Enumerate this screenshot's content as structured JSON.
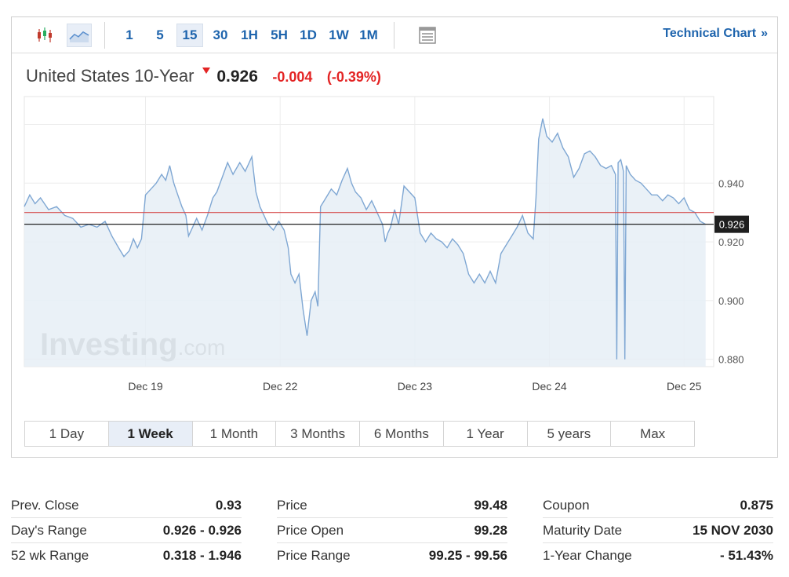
{
  "toolbar": {
    "intervals": [
      "1",
      "5",
      "15",
      "30",
      "1H",
      "5H",
      "1D",
      "1W",
      "1M"
    ],
    "active_interval": "15",
    "technical_chart_label": "Technical Chart",
    "technical_chart_chevron": "»",
    "icons": [
      "candlestick-icon",
      "line-chart-icon",
      "table-view-icon"
    ]
  },
  "quote": {
    "name": "United States 10-Year",
    "price": "0.926",
    "change": "-0.004",
    "change_pct": "(-0.39%)",
    "direction": "down",
    "down_color": "#e32424"
  },
  "watermark": {
    "brand": "Investing",
    "suffix": ".com"
  },
  "chart_data": {
    "type": "area",
    "title": "United States 10-Year",
    "x_tick_labels": [
      "Dec 19",
      "Dec 22",
      "Dec 23",
      "Dec 24",
      "Dec 25"
    ],
    "x_tick_positions": [
      1,
      2,
      3,
      4,
      5
    ],
    "xlim": [
      0.1,
      5.22
    ],
    "y_tick_labels": [
      "0.940",
      "0.920",
      "0.900",
      "0.880"
    ],
    "y_ticks": [
      0.94,
      0.92,
      0.9,
      0.88
    ],
    "ylim": [
      0.8775,
      0.9695
    ],
    "current_price": 0.926,
    "current_price_label": "0.926",
    "prev_close_line": 0.93,
    "colors": {
      "line": "#7fa7d3",
      "fill": "#e6eef6",
      "prev_close": "#d64a4a",
      "current": "#222222",
      "grid": "#ececec"
    },
    "series": [
      {
        "values": [
          [
            0.1,
            0.932
          ],
          [
            0.14,
            0.936
          ],
          [
            0.18,
            0.933
          ],
          [
            0.22,
            0.935
          ],
          [
            0.28,
            0.931
          ],
          [
            0.34,
            0.932
          ],
          [
            0.4,
            0.929
          ],
          [
            0.46,
            0.928
          ],
          [
            0.52,
            0.925
          ],
          [
            0.58,
            0.926
          ],
          [
            0.64,
            0.925
          ],
          [
            0.7,
            0.927
          ],
          [
            0.75,
            0.922
          ],
          [
            0.8,
            0.918
          ],
          [
            0.84,
            0.915
          ],
          [
            0.88,
            0.917
          ],
          [
            0.91,
            0.921
          ],
          [
            0.94,
            0.918
          ],
          [
            0.97,
            0.921
          ],
          [
            1.0,
            0.936
          ],
          [
            1.04,
            0.938
          ],
          [
            1.08,
            0.94
          ],
          [
            1.12,
            0.943
          ],
          [
            1.15,
            0.941
          ],
          [
            1.18,
            0.946
          ],
          [
            1.21,
            0.94
          ],
          [
            1.24,
            0.936
          ],
          [
            1.27,
            0.932
          ],
          [
            1.3,
            0.929
          ],
          [
            1.32,
            0.922
          ],
          [
            1.35,
            0.925
          ],
          [
            1.38,
            0.928
          ],
          [
            1.42,
            0.924
          ],
          [
            1.46,
            0.929
          ],
          [
            1.5,
            0.935
          ],
          [
            1.53,
            0.937
          ],
          [
            1.57,
            0.942
          ],
          [
            1.61,
            0.947
          ],
          [
            1.65,
            0.943
          ],
          [
            1.7,
            0.947
          ],
          [
            1.74,
            0.944
          ],
          [
            1.79,
            0.949
          ],
          [
            1.82,
            0.937
          ],
          [
            1.85,
            0.932
          ],
          [
            1.88,
            0.929
          ],
          [
            1.91,
            0.926
          ],
          [
            1.95,
            0.924
          ],
          [
            1.99,
            0.927
          ],
          [
            2.03,
            0.924
          ],
          [
            2.06,
            0.918
          ],
          [
            2.08,
            0.909
          ],
          [
            2.11,
            0.906
          ],
          [
            2.14,
            0.909
          ],
          [
            2.17,
            0.897
          ],
          [
            2.2,
            0.888
          ],
          [
            2.23,
            0.9
          ],
          [
            2.26,
            0.903
          ],
          [
            2.28,
            0.898
          ],
          [
            2.3,
            0.932
          ],
          [
            2.34,
            0.935
          ],
          [
            2.38,
            0.938
          ],
          [
            2.42,
            0.936
          ],
          [
            2.46,
            0.941
          ],
          [
            2.5,
            0.945
          ],
          [
            2.53,
            0.94
          ],
          [
            2.56,
            0.937
          ],
          [
            2.6,
            0.935
          ],
          [
            2.64,
            0.931
          ],
          [
            2.68,
            0.934
          ],
          [
            2.72,
            0.93
          ],
          [
            2.76,
            0.926
          ],
          [
            2.78,
            0.92
          ],
          [
            2.8,
            0.923
          ],
          [
            2.82,
            0.925
          ],
          [
            2.85,
            0.931
          ],
          [
            2.88,
            0.926
          ],
          [
            2.92,
            0.939
          ],
          [
            2.96,
            0.937
          ],
          [
            3.0,
            0.935
          ],
          [
            3.04,
            0.923
          ],
          [
            3.08,
            0.92
          ],
          [
            3.12,
            0.923
          ],
          [
            3.16,
            0.921
          ],
          [
            3.2,
            0.92
          ],
          [
            3.24,
            0.918
          ],
          [
            3.28,
            0.921
          ],
          [
            3.32,
            0.919
          ],
          [
            3.36,
            0.916
          ],
          [
            3.4,
            0.909
          ],
          [
            3.44,
            0.906
          ],
          [
            3.48,
            0.909
          ],
          [
            3.52,
            0.906
          ],
          [
            3.56,
            0.91
          ],
          [
            3.6,
            0.906
          ],
          [
            3.64,
            0.916
          ],
          [
            3.68,
            0.919
          ],
          [
            3.72,
            0.922
          ],
          [
            3.76,
            0.925
          ],
          [
            3.8,
            0.929
          ],
          [
            3.84,
            0.923
          ],
          [
            3.88,
            0.921
          ],
          [
            3.9,
            0.935
          ],
          [
            3.92,
            0.955
          ],
          [
            3.95,
            0.962
          ],
          [
            3.98,
            0.956
          ],
          [
            4.02,
            0.954
          ],
          [
            4.06,
            0.957
          ],
          [
            4.1,
            0.952
          ],
          [
            4.14,
            0.949
          ],
          [
            4.18,
            0.942
          ],
          [
            4.22,
            0.945
          ],
          [
            4.26,
            0.95
          ],
          [
            4.3,
            0.951
          ],
          [
            4.34,
            0.949
          ],
          [
            4.38,
            0.946
          ],
          [
            4.42,
            0.945
          ],
          [
            4.46,
            0.946
          ],
          [
            4.49,
            0.943
          ],
          [
            4.5,
            0.88
          ],
          [
            4.51,
            0.947
          ],
          [
            4.53,
            0.948
          ],
          [
            4.55,
            0.944
          ],
          [
            4.56,
            0.88
          ],
          [
            4.57,
            0.946
          ],
          [
            4.6,
            0.943
          ],
          [
            4.64,
            0.941
          ],
          [
            4.68,
            0.94
          ],
          [
            4.72,
            0.938
          ],
          [
            4.76,
            0.936
          ],
          [
            4.8,
            0.936
          ],
          [
            4.84,
            0.934
          ],
          [
            4.88,
            0.936
          ],
          [
            4.92,
            0.935
          ],
          [
            4.96,
            0.933
          ],
          [
            5.0,
            0.935
          ],
          [
            5.04,
            0.931
          ],
          [
            5.08,
            0.93
          ],
          [
            5.12,
            0.927
          ],
          [
            5.16,
            0.926
          ]
        ]
      }
    ]
  },
  "range_tabs": [
    "1 Day",
    "1 Week",
    "1 Month",
    "3 Months",
    "6 Months",
    "1 Year",
    "5 years",
    "Max"
  ],
  "active_range": "1 Week",
  "stats": {
    "col1": [
      {
        "label": "Prev. Close",
        "value": "0.93"
      },
      {
        "label": "Day's Range",
        "value": "0.926 - 0.926"
      },
      {
        "label": "52 wk Range",
        "value": "0.318 - 1.946"
      }
    ],
    "col2": [
      {
        "label": "Price",
        "value": "99.48"
      },
      {
        "label": "Price Open",
        "value": "99.28"
      },
      {
        "label": "Price Range",
        "value": "99.25 - 99.56"
      }
    ],
    "col3": [
      {
        "label": "Coupon",
        "value": "0.875"
      },
      {
        "label": "Maturity Date",
        "value": "15 NOV 2030"
      },
      {
        "label": "1-Year Change",
        "value": "- 51.43%"
      }
    ]
  }
}
